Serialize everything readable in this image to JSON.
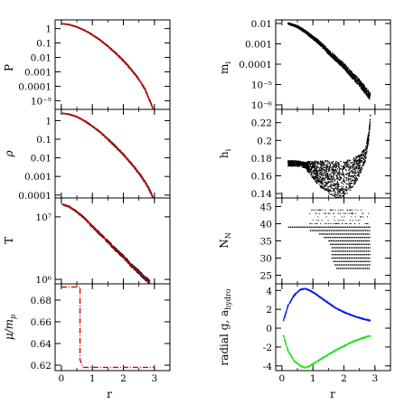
{
  "chart_data": [
    {
      "id": "P",
      "type": "line",
      "ylabel": "P",
      "xlabel": "",
      "yscale": "log",
      "xlim": [
        -0.2,
        3.5
      ],
      "ylim": [
        2.5e-06,
        4
      ],
      "yticks": [
        1,
        0.1,
        0.01,
        0.001,
        0.0001,
        1e-05
      ],
      "ytick_labels": [
        "1",
        "0.1",
        "0.01",
        "0.001",
        "0.0001",
        "10⁻⁵"
      ],
      "xticks": [
        0,
        1,
        2,
        3
      ],
      "xtick_labels": [],
      "colors": {
        "reference": "#e00000",
        "particles": "#000000"
      },
      "series": [
        {
          "x": [
            0,
            0.25,
            0.5,
            0.75,
            1.0,
            1.25,
            1.5,
            1.75,
            2.0,
            2.25,
            2.5,
            2.7,
            2.85,
            2.95
          ],
          "y": [
            2.2,
            1.9,
            1.3,
            0.75,
            0.37,
            0.16,
            0.06,
            0.02,
            0.006,
            0.0015,
            0.0003,
            6e-05,
            1e-05,
            3e-06
          ]
        }
      ]
    },
    {
      "id": "rho",
      "type": "line",
      "ylabel": "ρ",
      "xlabel": "",
      "yscale": "log",
      "xlim": [
        -0.2,
        3.5
      ],
      "ylim": [
        7e-05,
        4
      ],
      "yticks": [
        1,
        0.1,
        0.01,
        0.001,
        0.0001
      ],
      "ytick_labels": [
        "1",
        "0.1",
        "0.01",
        "0.001",
        "0.0001"
      ],
      "xticks": [
        0,
        1,
        2,
        3
      ],
      "xtick_labels": [],
      "colors": {
        "reference": "#e00000",
        "particles": "#000000"
      },
      "series": [
        {
          "x": [
            0,
            0.25,
            0.5,
            0.75,
            1.0,
            1.25,
            1.5,
            1.75,
            2.0,
            2.25,
            2.5,
            2.7,
            2.85,
            2.95
          ],
          "y": [
            2.5,
            2.2,
            1.6,
            0.95,
            0.5,
            0.24,
            0.1,
            0.04,
            0.015,
            0.005,
            0.0015,
            0.0005,
            0.00018,
            8e-05
          ]
        }
      ]
    },
    {
      "id": "T",
      "type": "line",
      "ylabel": "T",
      "xlabel": "",
      "yscale": "log",
      "xlim": [
        -0.2,
        3.5
      ],
      "ylim": [
        850000,
        20000000
      ],
      "yticks": [
        10000000,
        1000000
      ],
      "ytick_labels": [
        "10⁷",
        "10⁶"
      ],
      "xticks": [
        0,
        1,
        2,
        3
      ],
      "xtick_labels": [],
      "colors": {
        "reference": "#e00000",
        "particles": "#000000"
      },
      "series": [
        {
          "x": [
            0,
            0.25,
            0.5,
            0.75,
            1.0,
            1.25,
            1.5,
            1.75,
            2.0,
            2.25,
            2.5,
            2.7,
            2.85
          ],
          "y": [
            16000000,
            14500000,
            12000000,
            9500000,
            7000000,
            5300000,
            4000000,
            3000000,
            2300000,
            1700000,
            1300000,
            1050000,
            900000
          ]
        }
      ]
    },
    {
      "id": "mu",
      "type": "line",
      "ylabel": "μ/m",
      "ylabel_sub": "p",
      "xlabel": "r",
      "yscale": "linear",
      "xlim": [
        -0.2,
        3.5
      ],
      "ylim": [
        0.615,
        0.695
      ],
      "yticks": [
        0.68,
        0.66,
        0.64,
        0.62
      ],
      "ytick_labels": [
        "0.68",
        "0.66",
        "0.64",
        "0.62"
      ],
      "xticks": [
        0,
        1,
        2,
        3
      ],
      "xtick_labels": [
        "0",
        "1",
        "2",
        "3"
      ],
      "colors": {
        "reference": "#e00000",
        "particles": "#000000"
      },
      "series": [
        {
          "x": [
            0,
            0.6,
            0.6,
            0.7,
            3.0
          ],
          "y": [
            0.692,
            0.692,
            0.625,
            0.618,
            0.618
          ]
        }
      ]
    },
    {
      "id": "m",
      "type": "scatter",
      "ylabel": "m",
      "ylabel_sub": "i",
      "xlabel": "",
      "yscale": "log",
      "xlim": [
        -0.2,
        3.5
      ],
      "ylim": [
        6e-07,
        0.015
      ],
      "yticks": [
        0.01,
        0.001,
        0.0001,
        1e-05,
        1e-06
      ],
      "ytick_labels": [
        "0.01",
        "0.001",
        "0.0001",
        "10⁻⁵",
        "10⁻⁶"
      ],
      "xticks": [
        0,
        1,
        2,
        3
      ],
      "xtick_labels": [],
      "colors": {
        "particles": "#000000"
      },
      "series": [
        {
          "x": [
            0.2,
            0.5,
            0.75,
            1.0,
            1.25,
            1.5,
            1.75,
            2.0,
            2.25,
            2.5,
            2.75,
            2.85
          ],
          "y": [
            0.01,
            0.007,
            0.004,
            0.002,
            0.001,
            0.0004,
            0.00018,
            8e-05,
            3e-05,
            1.2e-05,
            4e-06,
            2.5e-06
          ]
        }
      ]
    },
    {
      "id": "h",
      "type": "scatter",
      "ylabel": "h",
      "ylabel_sub": "i",
      "xlabel": "",
      "yscale": "linear",
      "xlim": [
        -0.2,
        3.5
      ],
      "ylim": [
        0.135,
        0.235
      ],
      "yticks": [
        0.22,
        0.2,
        0.18,
        0.16,
        0.14
      ],
      "ytick_labels": [
        "0.22",
        "0.2",
        "0.18",
        "0.16",
        "0.14"
      ],
      "xticks": [
        0,
        1,
        2,
        3
      ],
      "xtick_labels": [],
      "colors": {
        "particles": "#000000"
      },
      "series": [
        {
          "x": [
            0.2,
            0.5,
            0.75,
            1.0,
            1.25,
            1.5,
            1.75,
            2.0,
            2.25,
            2.5,
            2.7,
            2.8,
            2.85
          ],
          "y": [
            0.174,
            0.174,
            0.172,
            0.167,
            0.162,
            0.158,
            0.156,
            0.157,
            0.162,
            0.172,
            0.185,
            0.205,
            0.225
          ]
        }
      ]
    },
    {
      "id": "N",
      "type": "scatter",
      "ylabel": "N",
      "ylabel_sub": "N",
      "xlabel": "",
      "yscale": "linear",
      "xlim": [
        -0.2,
        3.5
      ],
      "ylim": [
        22.5,
        47.5
      ],
      "yticks": [
        45,
        40,
        35,
        30,
        25
      ],
      "ytick_labels": [
        "45",
        "40",
        "35",
        "30",
        "25"
      ],
      "xticks": [
        0,
        1,
        2,
        3
      ],
      "xtick_labels": [],
      "colors": {
        "particles": "#000000"
      },
      "series": [
        {
          "x_min": [
            0.2,
            0.9,
            1.2,
            1.35,
            1.5,
            1.55,
            1.6,
            1.6,
            1.6,
            1.6,
            1.65,
            1.7,
            1.75
          ],
          "x_max": [
            2.85,
            2.85,
            2.85,
            2.85,
            2.85,
            2.85,
            2.85,
            2.85,
            2.85,
            2.85,
            2.85,
            2.85,
            2.85
          ],
          "y": [
            39,
            38,
            37,
            36,
            35,
            34,
            33,
            32,
            31,
            30,
            29,
            28,
            27
          ]
        }
      ]
    },
    {
      "id": "g",
      "type": "line",
      "ylabel": "radial g, a",
      "ylabel_sub": "hydro",
      "xlabel": "r",
      "yscale": "linear",
      "xlim": [
        -0.2,
        3.5
      ],
      "ylim": [
        -4.5,
        4.7
      ],
      "yticks": [
        4,
        2,
        0,
        -2,
        -4
      ],
      "ytick_labels": [
        "4",
        "2",
        "0",
        "-2",
        "-4"
      ],
      "xticks": [
        0,
        1,
        2,
        3
      ],
      "xtick_labels": [
        "0",
        "1",
        "2",
        "3"
      ],
      "colors": {
        "hydro": "#0a1ee6",
        "gravity": "#1ee61e"
      },
      "series": [
        {
          "x": [
            0.05,
            0.2,
            0.4,
            0.6,
            0.75,
            0.9,
            1.1,
            1.4,
            1.7,
            2.0,
            2.3,
            2.6,
            2.85
          ],
          "y": [
            0.8,
            2.4,
            3.5,
            4.1,
            4.2,
            4.0,
            3.6,
            2.9,
            2.2,
            1.7,
            1.3,
            1.0,
            0.8
          ]
        },
        {
          "x": [
            0.05,
            0.2,
            0.4,
            0.6,
            0.75,
            0.9,
            1.1,
            1.4,
            1.7,
            2.0,
            2.3,
            2.6,
            2.85
          ],
          "y": [
            -0.8,
            -2.4,
            -3.5,
            -4.0,
            -4.2,
            -4.0,
            -3.6,
            -3.0,
            -2.4,
            -1.9,
            -1.4,
            -1.05,
            -0.8
          ]
        }
      ]
    }
  ]
}
